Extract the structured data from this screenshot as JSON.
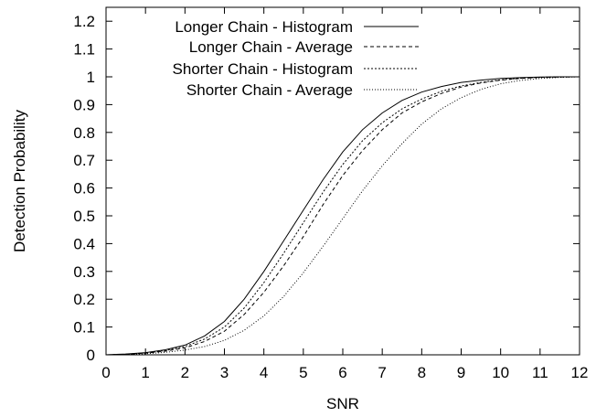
{
  "chart_data": {
    "type": "line",
    "title": "",
    "xlabel": "SNR",
    "ylabel": "Detection Probability",
    "xlim": [
      0,
      12
    ],
    "ylim": [
      0,
      1.25
    ],
    "x_ticks": [
      "0",
      "1",
      "2",
      "3",
      "4",
      "5",
      "6",
      "7",
      "8",
      "9",
      "10",
      "11",
      "12"
    ],
    "y_ticks": [
      "0",
      "0.1",
      "0.2",
      "0.3",
      "0.4",
      "0.5",
      "0.6",
      "0.7",
      "0.8",
      "0.9",
      "1",
      "1.1",
      "1.2"
    ],
    "grid": false,
    "legend_position": "top-left",
    "series": [
      {
        "name": "Longer Chain - Histogram",
        "style": "solid",
        "x": [
          0,
          0.5,
          1,
          1.5,
          2,
          2.5,
          3,
          3.5,
          4,
          4.5,
          5,
          5.5,
          6,
          6.5,
          7,
          7.5,
          8,
          8.5,
          9,
          9.5,
          10,
          10.5,
          11,
          11.5,
          12
        ],
        "y": [
          0.0,
          0.003,
          0.008,
          0.018,
          0.035,
          0.068,
          0.12,
          0.2,
          0.3,
          0.41,
          0.52,
          0.63,
          0.73,
          0.81,
          0.87,
          0.915,
          0.945,
          0.965,
          0.98,
          0.988,
          0.994,
          0.997,
          0.999,
          1.0,
          1.0
        ]
      },
      {
        "name": "Longer Chain - Average",
        "style": "dashed",
        "x": [
          0,
          0.5,
          1,
          1.5,
          2,
          2.5,
          3,
          3.5,
          4,
          4.5,
          5,
          5.5,
          6,
          6.5,
          7,
          7.5,
          8,
          8.5,
          9,
          9.5,
          10,
          10.5,
          11,
          11.5,
          12
        ],
        "y": [
          0.0,
          0.002,
          0.006,
          0.013,
          0.025,
          0.048,
          0.085,
          0.145,
          0.225,
          0.32,
          0.425,
          0.54,
          0.645,
          0.735,
          0.81,
          0.87,
          0.91,
          0.94,
          0.963,
          0.978,
          0.988,
          0.994,
          0.998,
          0.999,
          1.0
        ]
      },
      {
        "name": "Shorter Chain - Histogram",
        "style": "dotted",
        "x": [
          0,
          0.5,
          1,
          1.5,
          2,
          2.5,
          3,
          3.5,
          4,
          4.5,
          5,
          5.5,
          6,
          6.5,
          7,
          7.5,
          8,
          8.5,
          9,
          9.5,
          10,
          10.5,
          11,
          11.5,
          12
        ],
        "y": [
          0.0,
          0.002,
          0.007,
          0.015,
          0.03,
          0.057,
          0.1,
          0.168,
          0.26,
          0.365,
          0.475,
          0.585,
          0.685,
          0.77,
          0.835,
          0.885,
          0.92,
          0.948,
          0.967,
          0.98,
          0.989,
          0.995,
          0.998,
          1.0,
          1.0
        ]
      },
      {
        "name": "Shorter Chain - Average",
        "style": "fine-dotted",
        "x": [
          0,
          0.5,
          1,
          1.5,
          2,
          2.5,
          3,
          3.5,
          4,
          4.5,
          5,
          5.5,
          6,
          6.5,
          7,
          7.5,
          8,
          8.5,
          9,
          9.5,
          10,
          10.5,
          11,
          11.5,
          12
        ],
        "y": [
          0.0,
          0.001,
          0.004,
          0.009,
          0.017,
          0.03,
          0.052,
          0.088,
          0.14,
          0.21,
          0.295,
          0.39,
          0.49,
          0.59,
          0.68,
          0.76,
          0.83,
          0.885,
          0.925,
          0.955,
          0.975,
          0.987,
          0.994,
          0.998,
          1.0
        ]
      }
    ]
  }
}
